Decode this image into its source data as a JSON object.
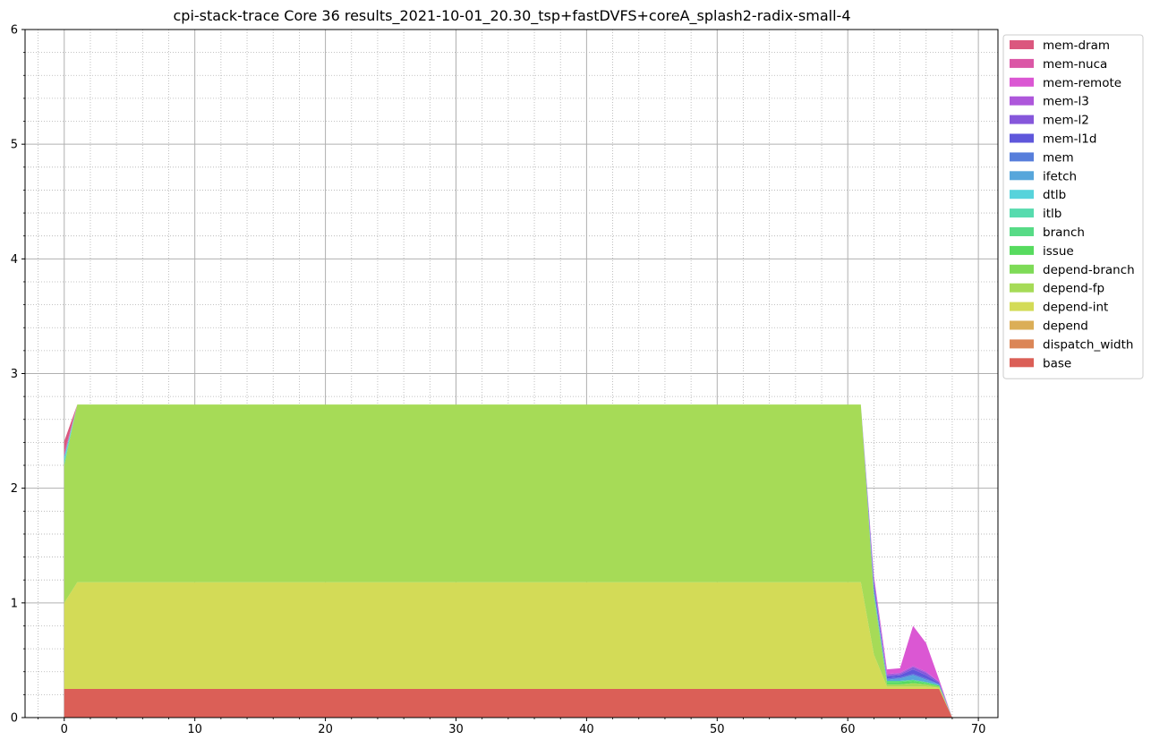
{
  "chart_data": {
    "type": "area",
    "stacked": true,
    "title": "cpi-stack-trace Core 36 results_2021-10-01_20.30_tsp+fastDVFS+coreA_splash2-radix-small-4",
    "xlabel": "",
    "ylabel": "",
    "xlim": [
      -3,
      71.5
    ],
    "ylim": [
      0,
      6
    ],
    "x_ticks": [
      0,
      10,
      20,
      30,
      40,
      50,
      60,
      70
    ],
    "y_ticks": [
      0,
      1,
      2,
      3,
      4,
      5,
      6
    ],
    "x_tick_labels": [
      "0",
      "10",
      "20",
      "30",
      "40",
      "50",
      "60",
      "70"
    ],
    "y_tick_labels": [
      "0",
      "1",
      "2",
      "3",
      "4",
      "5",
      "6"
    ],
    "grid": {
      "major": true,
      "minor": true
    },
    "legend_position": "outside-right-top",
    "x": [
      0,
      1,
      61,
      62,
      63,
      64,
      65,
      66,
      67,
      68
    ],
    "series": [
      {
        "name": "base",
        "color": "#db5f57",
        "values": [
          0.25,
          0.25,
          0.25,
          0.25,
          0.25,
          0.25,
          0.25,
          0.25,
          0.25,
          0
        ]
      },
      {
        "name": "dispatch_width",
        "color": "#db8657",
        "values": [
          0,
          0,
          0,
          0,
          0,
          0,
          0,
          0,
          0,
          0
        ]
      },
      {
        "name": "depend",
        "color": "#dbae57",
        "values": [
          0,
          0,
          0,
          0,
          0,
          0,
          0,
          0,
          0,
          0
        ]
      },
      {
        "name": "depend-int",
        "color": "#d3db57",
        "values": [
          0.75,
          0.93,
          0.93,
          0.3,
          0.02,
          0.02,
          0.02,
          0.02,
          0.01,
          0
        ]
      },
      {
        "name": "depend-fp",
        "color": "#a6db57",
        "values": [
          1.2,
          1.55,
          1.55,
          0.5,
          0.02,
          0.02,
          0.03,
          0.02,
          0.01,
          0
        ]
      },
      {
        "name": "depend-branch",
        "color": "#7edb57",
        "values": [
          0,
          0,
          0,
          0,
          0,
          0,
          0,
          0,
          0,
          0
        ]
      },
      {
        "name": "issue",
        "color": "#57db5f",
        "values": [
          0,
          0,
          0,
          0.02,
          0.02,
          0.02,
          0.02,
          0.01,
          0.01,
          0
        ]
      },
      {
        "name": "branch",
        "color": "#57db86",
        "values": [
          0,
          0,
          0,
          0.02,
          0.01,
          0.01,
          0.01,
          0.01,
          0,
          0
        ]
      },
      {
        "name": "itlb",
        "color": "#57dbae",
        "values": [
          0.04,
          0,
          0,
          0,
          0,
          0,
          0,
          0,
          0,
          0
        ]
      },
      {
        "name": "dtlb",
        "color": "#57d3db",
        "values": [
          0.02,
          0,
          0,
          0,
          0,
          0,
          0,
          0,
          0,
          0
        ]
      },
      {
        "name": "ifetch",
        "color": "#57a6db",
        "values": [
          0.02,
          0,
          0,
          0.02,
          0.01,
          0.02,
          0.04,
          0.02,
          0.01,
          0
        ]
      },
      {
        "name": "mem",
        "color": "#577edb",
        "values": [
          0,
          0,
          0,
          0.02,
          0.01,
          0.01,
          0.01,
          0.01,
          0,
          0
        ]
      },
      {
        "name": "mem-l1d",
        "color": "#5f57db",
        "values": [
          0,
          0,
          0,
          0.05,
          0.02,
          0.02,
          0.04,
          0.03,
          0.01,
          0
        ]
      },
      {
        "name": "mem-l2",
        "color": "#8657db",
        "values": [
          0,
          0,
          0,
          0.02,
          0.01,
          0.01,
          0.02,
          0.02,
          0.01,
          0
        ]
      },
      {
        "name": "mem-l3",
        "color": "#ae57db",
        "values": [
          0,
          0,
          0,
          0.02,
          0.01,
          0.01,
          0.01,
          0.01,
          0,
          0
        ]
      },
      {
        "name": "mem-remote",
        "color": "#db57d3",
        "values": [
          0,
          0,
          0,
          0.02,
          0.04,
          0.04,
          0.35,
          0.25,
          0.02,
          0
        ]
      },
      {
        "name": "mem-nuca",
        "color": "#db57a6",
        "values": [
          0.03,
          0,
          0,
          0,
          0,
          0,
          0,
          0,
          0,
          0
        ]
      },
      {
        "name": "mem-dram",
        "color": "#db577e",
        "values": [
          0.1,
          0,
          0,
          0,
          0,
          0,
          0,
          0,
          0,
          0
        ]
      }
    ]
  }
}
